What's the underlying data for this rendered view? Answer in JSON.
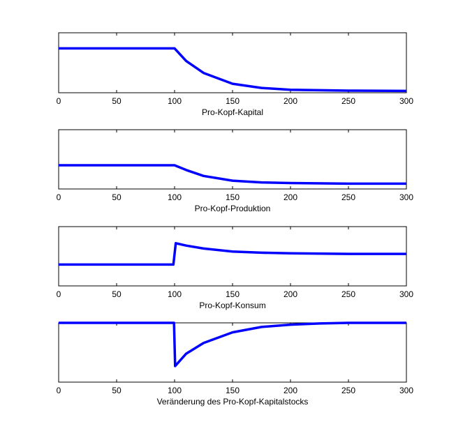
{
  "chart_data": [
    {
      "type": "line",
      "xlabel": "Pro-Kopf-Kapital",
      "xlim": [
        0,
        300
      ],
      "xticks": [
        0,
        50,
        100,
        150,
        200,
        250,
        300
      ],
      "xtick_labels": [
        "0",
        "50",
        "100",
        "150",
        "200",
        "250",
        "300"
      ],
      "ylim": [
        0,
        1
      ],
      "grid": false,
      "color": "#0000ff",
      "series": [
        {
          "x": [
            0,
            100,
            110,
            125,
            150,
            175,
            200,
            250,
            300
          ],
          "y": [
            0.74,
            0.74,
            0.53,
            0.33,
            0.15,
            0.08,
            0.05,
            0.035,
            0.03
          ]
        }
      ]
    },
    {
      "type": "line",
      "xlabel": "Pro-Kopf-Produktion",
      "xlim": [
        0,
        300
      ],
      "xticks": [
        0,
        50,
        100,
        150,
        200,
        250,
        300
      ],
      "xtick_labels": [
        "0",
        "50",
        "100",
        "150",
        "200",
        "250",
        "300"
      ],
      "ylim": [
        0,
        1
      ],
      "grid": false,
      "color": "#0000ff",
      "series": [
        {
          "x": [
            0,
            100,
            110,
            125,
            150,
            175,
            200,
            250,
            300
          ],
          "y": [
            0.4,
            0.4,
            0.32,
            0.22,
            0.14,
            0.11,
            0.1,
            0.09,
            0.09
          ]
        }
      ]
    },
    {
      "type": "line",
      "xlabel": "Pro-Kopf-Konsum",
      "xlim": [
        0,
        300
      ],
      "xticks": [
        0,
        50,
        100,
        150,
        200,
        250,
        300
      ],
      "xtick_labels": [
        "0",
        "50",
        "100",
        "150",
        "200",
        "250",
        "300"
      ],
      "ylim": [
        0,
        1
      ],
      "grid": false,
      "color": "#0000ff",
      "series": [
        {
          "x": [
            0,
            99,
            101,
            110,
            125,
            150,
            175,
            200,
            250,
            300
          ],
          "y": [
            0.36,
            0.36,
            0.72,
            0.68,
            0.63,
            0.58,
            0.56,
            0.55,
            0.54,
            0.54
          ]
        }
      ]
    },
    {
      "type": "line",
      "xlabel": "Veränderung des Pro-Kopf-Kapitalstocks",
      "xlim": [
        0,
        300
      ],
      "xticks": [
        0,
        50,
        100,
        150,
        200,
        250,
        300
      ],
      "xtick_labels": [
        "0",
        "50",
        "100",
        "150",
        "200",
        "250",
        "300"
      ],
      "ylim": [
        -1,
        0
      ],
      "grid": false,
      "color": "#0000ff",
      "series": [
        {
          "x": [
            0,
            99.5,
            100.5,
            110,
            125,
            150,
            175,
            200,
            225,
            250,
            300
          ],
          "y": [
            0,
            0,
            -0.73,
            -0.52,
            -0.34,
            -0.16,
            -0.07,
            -0.03,
            -0.01,
            0,
            0
          ]
        }
      ]
    }
  ]
}
